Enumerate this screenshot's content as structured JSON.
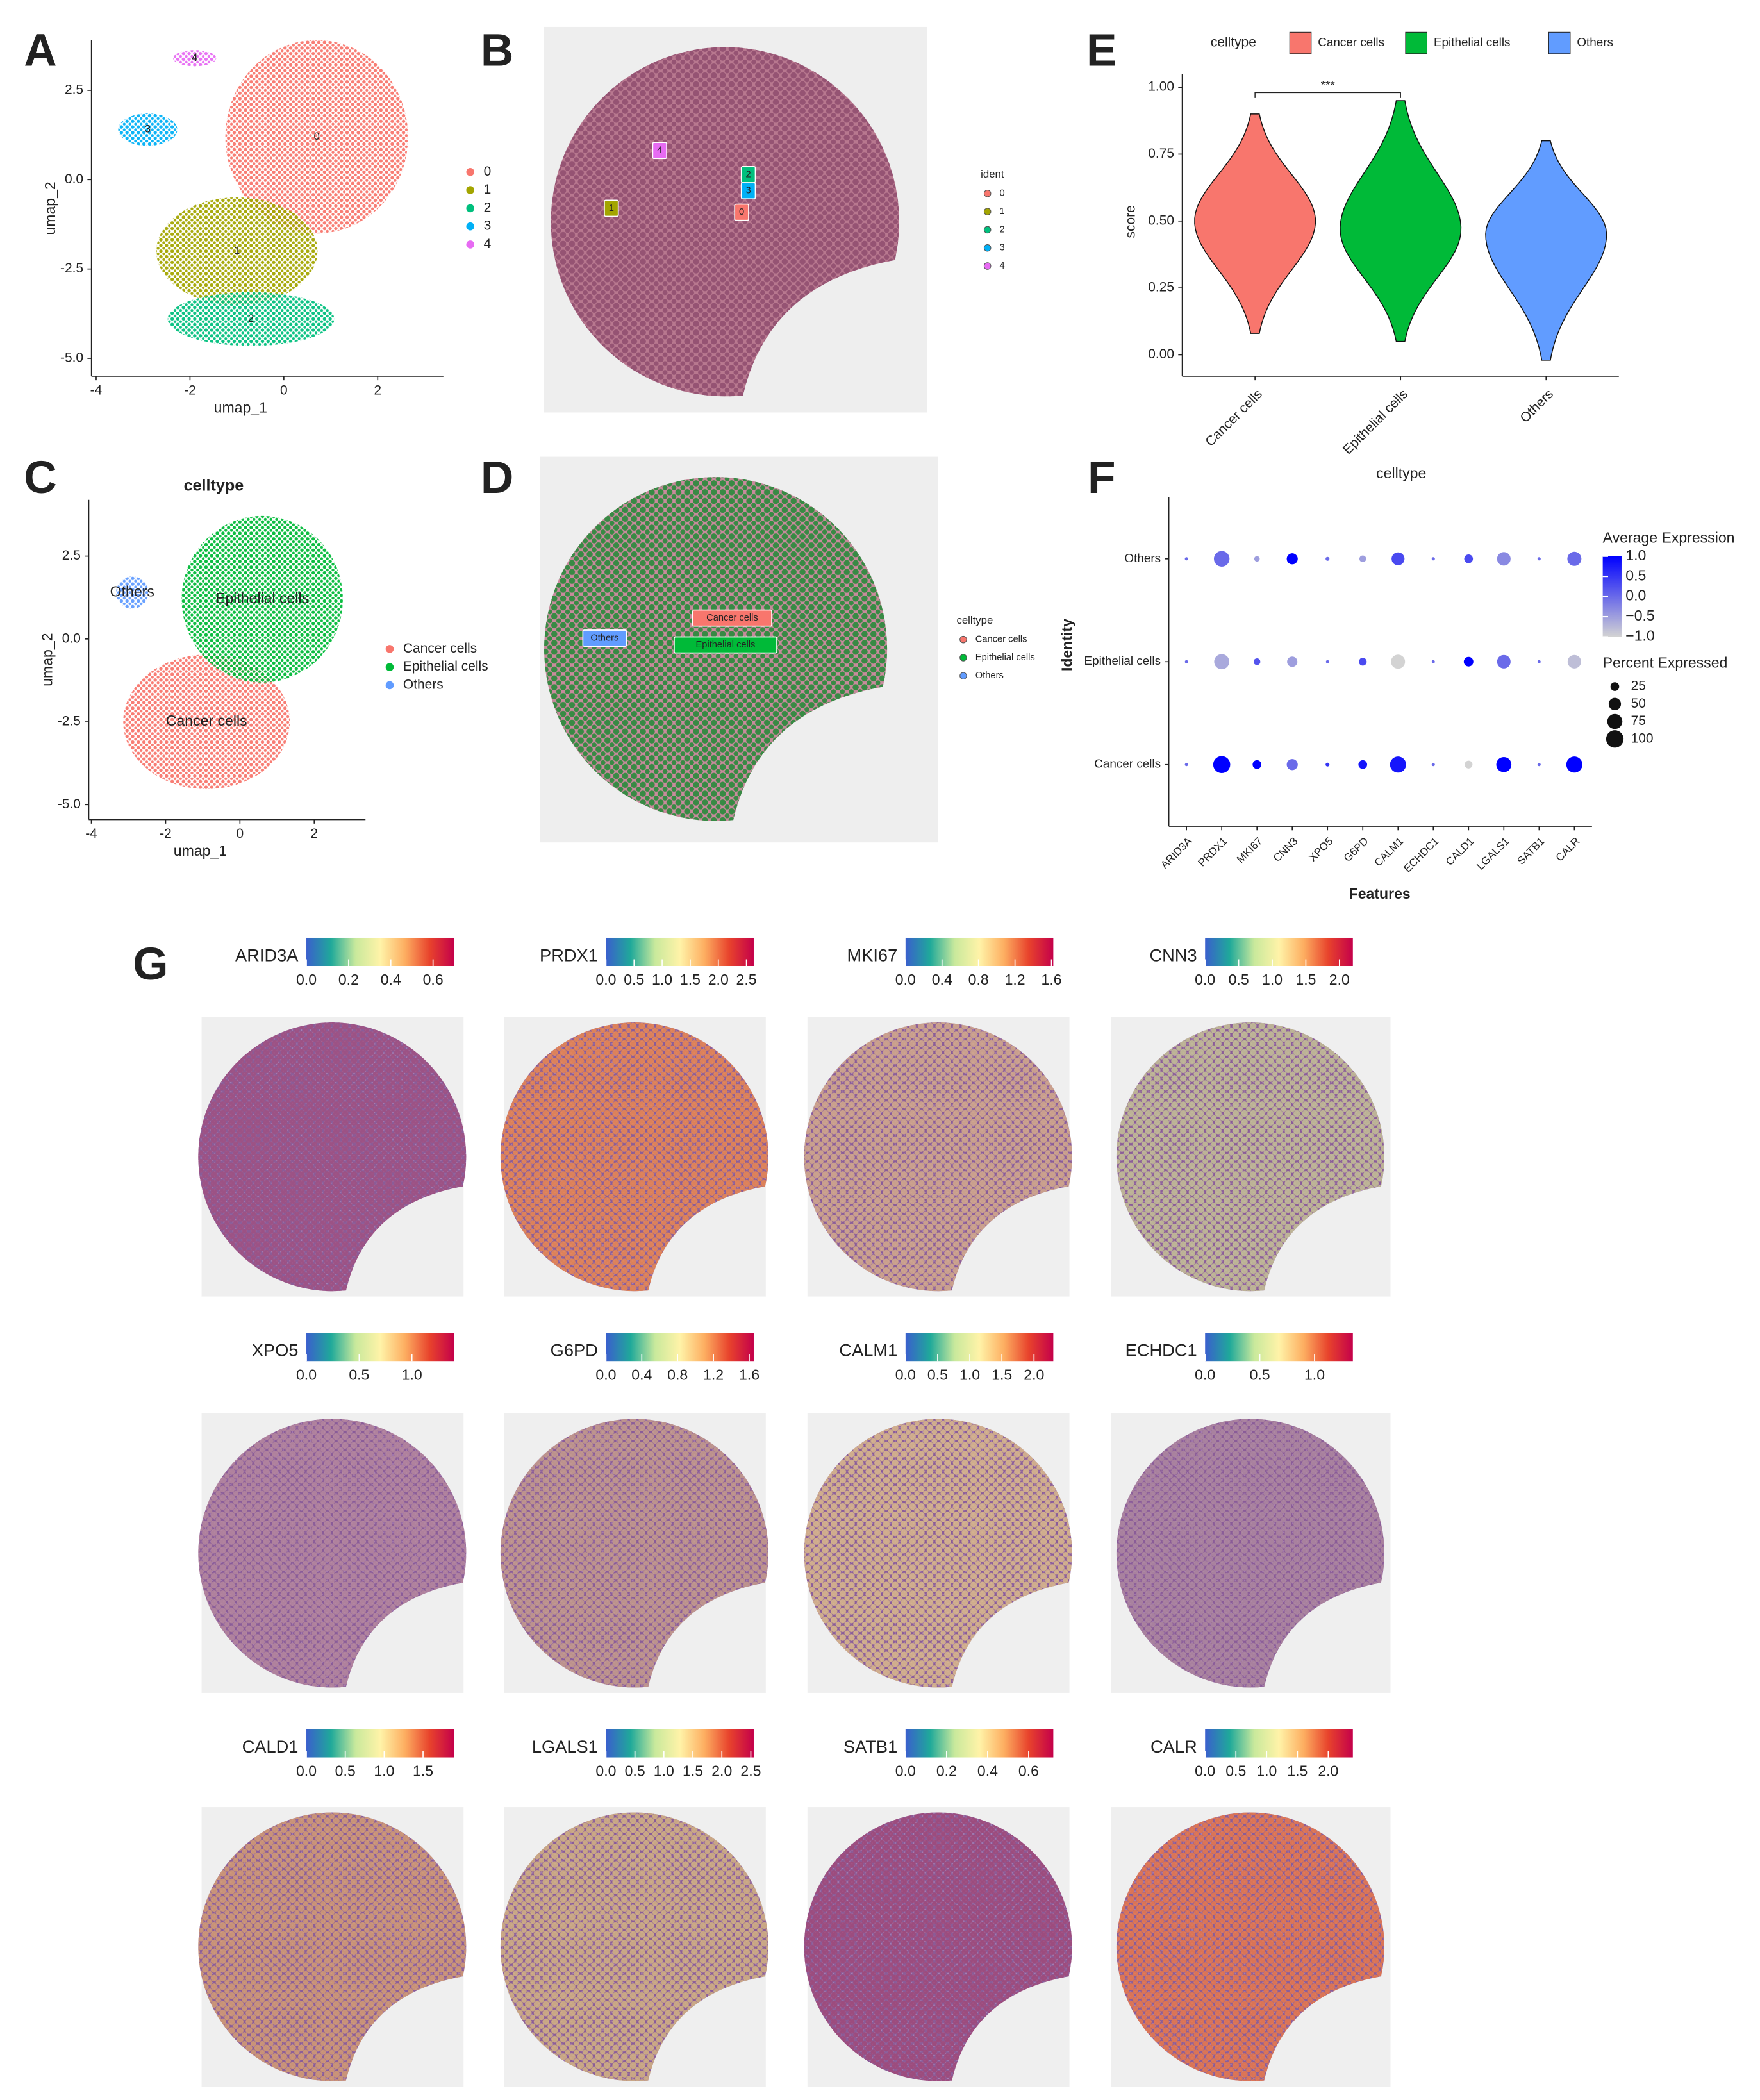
{
  "chart_data": [
    {
      "type": "scatter",
      "letter": "A",
      "xlabel": "umap_1",
      "ylabel": "umap_2",
      "xlim": [
        -4.1,
        3.4
      ],
      "ylim": [
        -5.5,
        3.9
      ],
      "xticks": [
        -4,
        -2,
        0,
        2
      ],
      "yticks": [
        2.5,
        {
          "value": 0,
          "label": "0.0"
        },
        -2.5,
        {
          "value": -5,
          "label": "-5.0"
        }
      ],
      "series": [
        {
          "name": "0",
          "color": "#F8766D",
          "center": [
            0.7,
            1.2
          ]
        },
        {
          "name": "1",
          "color": "#A3A500",
          "center": [
            -1.0,
            -2.0
          ]
        },
        {
          "name": "2",
          "color": "#00BF7D",
          "center": [
            -0.7,
            -3.9
          ]
        },
        {
          "name": "3",
          "color": "#00B0F6",
          "center": [
            -2.9,
            1.4
          ]
        },
        {
          "name": "4",
          "color": "#E76BF3",
          "center": [
            -1.9,
            3.4
          ]
        }
      ]
    },
    {
      "type": "spatial",
      "letter": "B",
      "legend_title": "ident",
      "series": [
        {
          "name": "0",
          "color": "#F8766D"
        },
        {
          "name": "1",
          "color": "#A3A500"
        },
        {
          "name": "2",
          "color": "#00BF7D"
        },
        {
          "name": "3",
          "color": "#00B0F6"
        },
        {
          "name": "4",
          "color": "#E76BF3"
        }
      ]
    },
    {
      "type": "scatter",
      "letter": "C",
      "title": "celltype",
      "xlabel": "umap_1",
      "ylabel": "umap_2",
      "xlim": [
        -4.07,
        3.38
      ],
      "ylim": [
        -5.45,
        4.2
      ],
      "xticks": [
        -4,
        -2,
        0,
        2
      ],
      "yticks": [
        2.5,
        {
          "value": 0,
          "label": "0.0"
        },
        -2.5,
        {
          "value": -5,
          "label": "-5.0"
        }
      ],
      "series": [
        {
          "name": "Cancer cells",
          "color": "#F8766D",
          "center": [
            -0.9,
            -2.5
          ]
        },
        {
          "name": "Epithelial cells",
          "color": "#00BA38",
          "center": [
            0.6,
            1.2
          ]
        },
        {
          "name": "Others",
          "color": "#619CFF",
          "center": [
            -2.9,
            1.4
          ]
        }
      ]
    },
    {
      "type": "spatial",
      "letter": "D",
      "legend_title": "celltype",
      "series": [
        {
          "name": "Cancer cells",
          "color": "#F8766D"
        },
        {
          "name": "Epithelial cells",
          "color": "#00BA38"
        },
        {
          "name": "Others",
          "color": "#619CFF"
        }
      ]
    },
    {
      "type": "violin",
      "letter": "E",
      "legend_title": "celltype",
      "ylabel": "score",
      "categories": [
        "Cancer cells",
        "Epithelial cells",
        "Others"
      ],
      "colors": [
        "#F8766D",
        "#00BA38",
        "#619CFF"
      ],
      "values": [
        0.5,
        0.47,
        0.45
      ],
      "ranges": [
        [
          0.08,
          0.9
        ],
        [
          0.05,
          0.95
        ],
        [
          -0.02,
          0.8
        ]
      ],
      "significance": "***",
      "ylim": [
        -0.08,
        1.05
      ],
      "yticks": [
        {
          "value": 0,
          "label": "0.00"
        },
        {
          "value": 0.25,
          "label": "0.25"
        },
        {
          "value": 0.5,
          "label": "0.50"
        },
        {
          "value": 0.75,
          "label": "0.75"
        },
        {
          "value": 1,
          "label": "1.00"
        }
      ]
    },
    {
      "type": "dotplot",
      "letter": "F",
      "title": "celltype",
      "xlabel": "Features",
      "ylabel": "Identity",
      "features": [
        "ARID3A",
        "PRDX1",
        "MKI67",
        "CNN3",
        "XPO5",
        "G6PD",
        "CALM1",
        "ECHDC1",
        "CALD1",
        "LGALS1",
        "SATB1",
        "CALR"
      ],
      "colors": [
        "#d3d3d3",
        "#0000ff"
      ],
      "color_title": "Average Expression",
      "color_lim": [
        -1,
        1
      ],
      "color_ticks": [
        {
          "value": 1,
          "label": "1.0"
        },
        0.5,
        {
          "value": 0,
          "label": "0.0"
        },
        {
          "value": -0.5,
          "label": "−0.5"
        },
        {
          "value": -1,
          "label": "−1.0"
        }
      ],
      "size_title": "Percent Expressed",
      "size_ticks": [
        25,
        50,
        75,
        100
      ],
      "series": [
        {
          "name": "Cancer cells",
          "avg_expression": [
            0,
            1.0,
            1.0,
            0.0,
            0.5,
            0.8,
            0.8,
            0,
            -1.0,
            1.0,
            0,
            1.0
          ],
          "pct_expressed": [
            3,
            95,
            25,
            40,
            5,
            25,
            85,
            3,
            20,
            75,
            3,
            85
          ]
        },
        {
          "name": "Epithelial cells",
          "avg_expression": [
            0,
            -0.6,
            0.2,
            -0.5,
            0,
            0.3,
            -1.0,
            0,
            1.0,
            0.0,
            0,
            -0.8
          ],
          "pct_expressed": [
            3,
            75,
            15,
            35,
            3,
            20,
            65,
            3,
            30,
            60,
            3,
            60
          ]
        },
        {
          "name": "Others",
          "avg_expression": [
            0,
            0.0,
            -0.5,
            1.0,
            0,
            -0.5,
            0.3,
            0,
            0.3,
            -0.3,
            0,
            0.0
          ],
          "pct_expressed": [
            3,
            80,
            10,
            40,
            5,
            15,
            55,
            3,
            25,
            60,
            3,
            65
          ]
        }
      ]
    },
    {
      "type": "spatial_feature",
      "letter": "G",
      "colors": [
        "#3a5fcd",
        "#1fa99a",
        "#c9e99c",
        "#fff3a8",
        "#fdae61",
        "#e8432c",
        "#c4004a"
      ],
      "panels": [
        {
          "gene": "ARID3A",
          "lim": [
            0,
            0.7
          ],
          "ticks": [
            {
              "value": 0,
              "label": "0.0"
            },
            0.2,
            0.4,
            0.6
          ],
          "spot_color": "#a05080"
        },
        {
          "gene": "PRDX1",
          "lim": [
            0,
            2.63
          ],
          "ticks": [
            {
              "value": 0,
              "label": "0.0"
            },
            0.5,
            {
              "value": 1,
              "label": "1.0"
            },
            1.5,
            {
              "value": 2,
              "label": "2.0"
            },
            2.5
          ],
          "spot_color": "#f08a4b"
        },
        {
          "gene": "MKI67",
          "lim": [
            0,
            1.62
          ],
          "ticks": [
            {
              "value": 0,
              "label": "0.0"
            },
            0.4,
            0.8,
            1.2,
            1.6
          ],
          "spot_color": "#d9b08a"
        },
        {
          "gene": "CNN3",
          "lim": [
            0,
            2.2
          ],
          "ticks": [
            {
              "value": 0,
              "label": "0.0"
            },
            0.5,
            {
              "value": 1,
              "label": "1.0"
            },
            1.5,
            {
              "value": 2,
              "label": "2.0"
            }
          ],
          "spot_color": "#c9c896"
        },
        {
          "gene": "XPO5",
          "lim": [
            0,
            1.4
          ],
          "ticks": [
            {
              "value": 0,
              "label": "0.0"
            },
            0.5,
            {
              "value": 1,
              "label": "1.0"
            }
          ],
          "spot_color": "#b88a9e"
        },
        {
          "gene": "G6PD",
          "lim": [
            0,
            1.65
          ],
          "ticks": [
            {
              "value": 0,
              "label": "0.0"
            },
            0.4,
            0.8,
            1.2,
            1.6
          ],
          "spot_color": "#c9a08a"
        },
        {
          "gene": "CALM1",
          "lim": [
            0,
            2.3
          ],
          "ticks": [
            {
              "value": 0,
              "label": "0.0"
            },
            0.5,
            {
              "value": 1,
              "label": "1.0"
            },
            1.5,
            {
              "value": 2,
              "label": "2.0"
            }
          ],
          "spot_color": "#e0c08a"
        },
        {
          "gene": "ECHDC1",
          "lim": [
            0,
            1.35
          ],
          "ticks": [
            {
              "value": 0,
              "label": "0.0"
            },
            0.5,
            {
              "value": 1,
              "label": "1.0"
            }
          ],
          "spot_color": "#b08aa0"
        },
        {
          "gene": "CALD1",
          "lim": [
            0,
            1.9
          ],
          "ticks": [
            {
              "value": 0,
              "label": "0.0"
            },
            0.5,
            {
              "value": 1,
              "label": "1.0"
            },
            1.5
          ],
          "spot_color": "#d8a070"
        },
        {
          "gene": "LGALS1",
          "lim": [
            0,
            2.55
          ],
          "ticks": [
            {
              "value": 0,
              "label": "0.0"
            },
            0.5,
            {
              "value": 1,
              "label": "1.0"
            },
            1.5,
            {
              "value": 2,
              "label": "2.0"
            },
            2.5
          ],
          "spot_color": "#d8b880"
        },
        {
          "gene": "SATB1",
          "lim": [
            0,
            0.72
          ],
          "ticks": [
            {
              "value": 0,
              "label": "0.0"
            },
            0.2,
            0.4,
            0.6
          ],
          "spot_color": "#a04878"
        },
        {
          "gene": "CALR",
          "lim": [
            0,
            2.4
          ],
          "ticks": [
            {
              "value": 0,
              "label": "0.0"
            },
            0.5,
            {
              "value": 1,
              "label": "1.0"
            },
            1.5,
            {
              "value": 2,
              "label": "2.0"
            }
          ],
          "spot_color": "#ee7a45"
        }
      ]
    }
  ]
}
